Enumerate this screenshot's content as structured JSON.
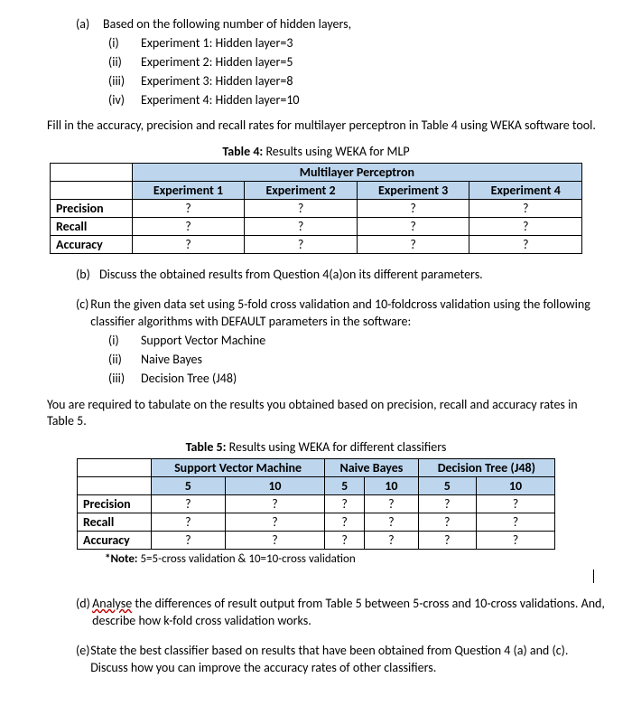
{
  "a": {
    "heading_tag": "(a)",
    "heading_text": "Based on the following number of hidden layers,",
    "items": [
      {
        "num": "(i)",
        "text": "Experiment 1: Hidden layer=3"
      },
      {
        "num": "(ii)",
        "text": "Experiment 2: Hidden layer=5"
      },
      {
        "num": "(iii)",
        "text": "Experiment 3: Hidden layer=8"
      },
      {
        "num": "(iv)",
        "text": "Experiment 4: Hidden layer=10"
      }
    ],
    "follow": "Fill in the accuracy, precision and recall rates for multilayer perceptron in Table 4 using WEKA software tool."
  },
  "table4": {
    "caption_bold": "Table 4:",
    "caption_rest": " Results using WEKA for MLP",
    "top_header": "Multilayer Perceptron",
    "experiments": [
      "Experiment 1",
      "Experiment 2",
      "Experiment 3",
      "Experiment 4"
    ],
    "row_labels": [
      "Precision",
      "Recall",
      "Accuracy"
    ],
    "cells": [
      [
        "?",
        "?",
        "?",
        "?"
      ],
      [
        "?",
        "?",
        "?",
        "?"
      ],
      [
        "?",
        "?",
        "?",
        "?"
      ]
    ],
    "header_bg": "#bdd6ee"
  },
  "b": {
    "tag": "(b)",
    "text": "Discuss the obtained results from Question 4(a)on its different parameters."
  },
  "c": {
    "tag": "(c)",
    "text": "Run the given data set using 5-fold cross validation and 10-foldcross validation using the following classifier algorithms with DEFAULT parameters in the software:",
    "items": [
      {
        "num": "(i)",
        "text": "Support Vector Machine"
      },
      {
        "num": "(ii)",
        "text": "Naive Bayes"
      },
      {
        "num": "(iii)",
        "text": "Decision Tree (J48)"
      }
    ],
    "follow": "You are required to tabulate on the results you obtained based on precision, recall and accuracy rates in Table 5."
  },
  "table5": {
    "caption_bold": "Table 5:",
    "caption_rest": " Results using WEKA for different classifiers",
    "classifiers": [
      "Support Vector Machine",
      "Naive Bayes",
      "Decision Tree (J48)"
    ],
    "folds": [
      "5",
      "10",
      "5",
      "10",
      "5",
      "10"
    ],
    "row_labels": [
      "Precision",
      "Recall",
      "Accuracy"
    ],
    "cells": [
      [
        "?",
        "?",
        "?",
        "?",
        "?",
        "?"
      ],
      [
        "?",
        "?",
        "?",
        "?",
        "?",
        "?"
      ],
      [
        "?",
        "?",
        "?",
        "?",
        "?",
        "?"
      ]
    ],
    "note_bold": "*Note:",
    "note_rest": " 5=5-cross validation & 10=10-cross validation"
  },
  "d": {
    "tag": "(d)",
    "word": "Analyse",
    "rest": " the differences of result output from Table 5 between 5-cross and 10-cross validations. And, describe how k-fold cross validation works."
  },
  "e": {
    "tag": "(e)",
    "text": "State the best classifier based on results that have been obtained from Question 4 (a) and (c). Discuss how you can improve the accuracy rates of other classifiers."
  }
}
